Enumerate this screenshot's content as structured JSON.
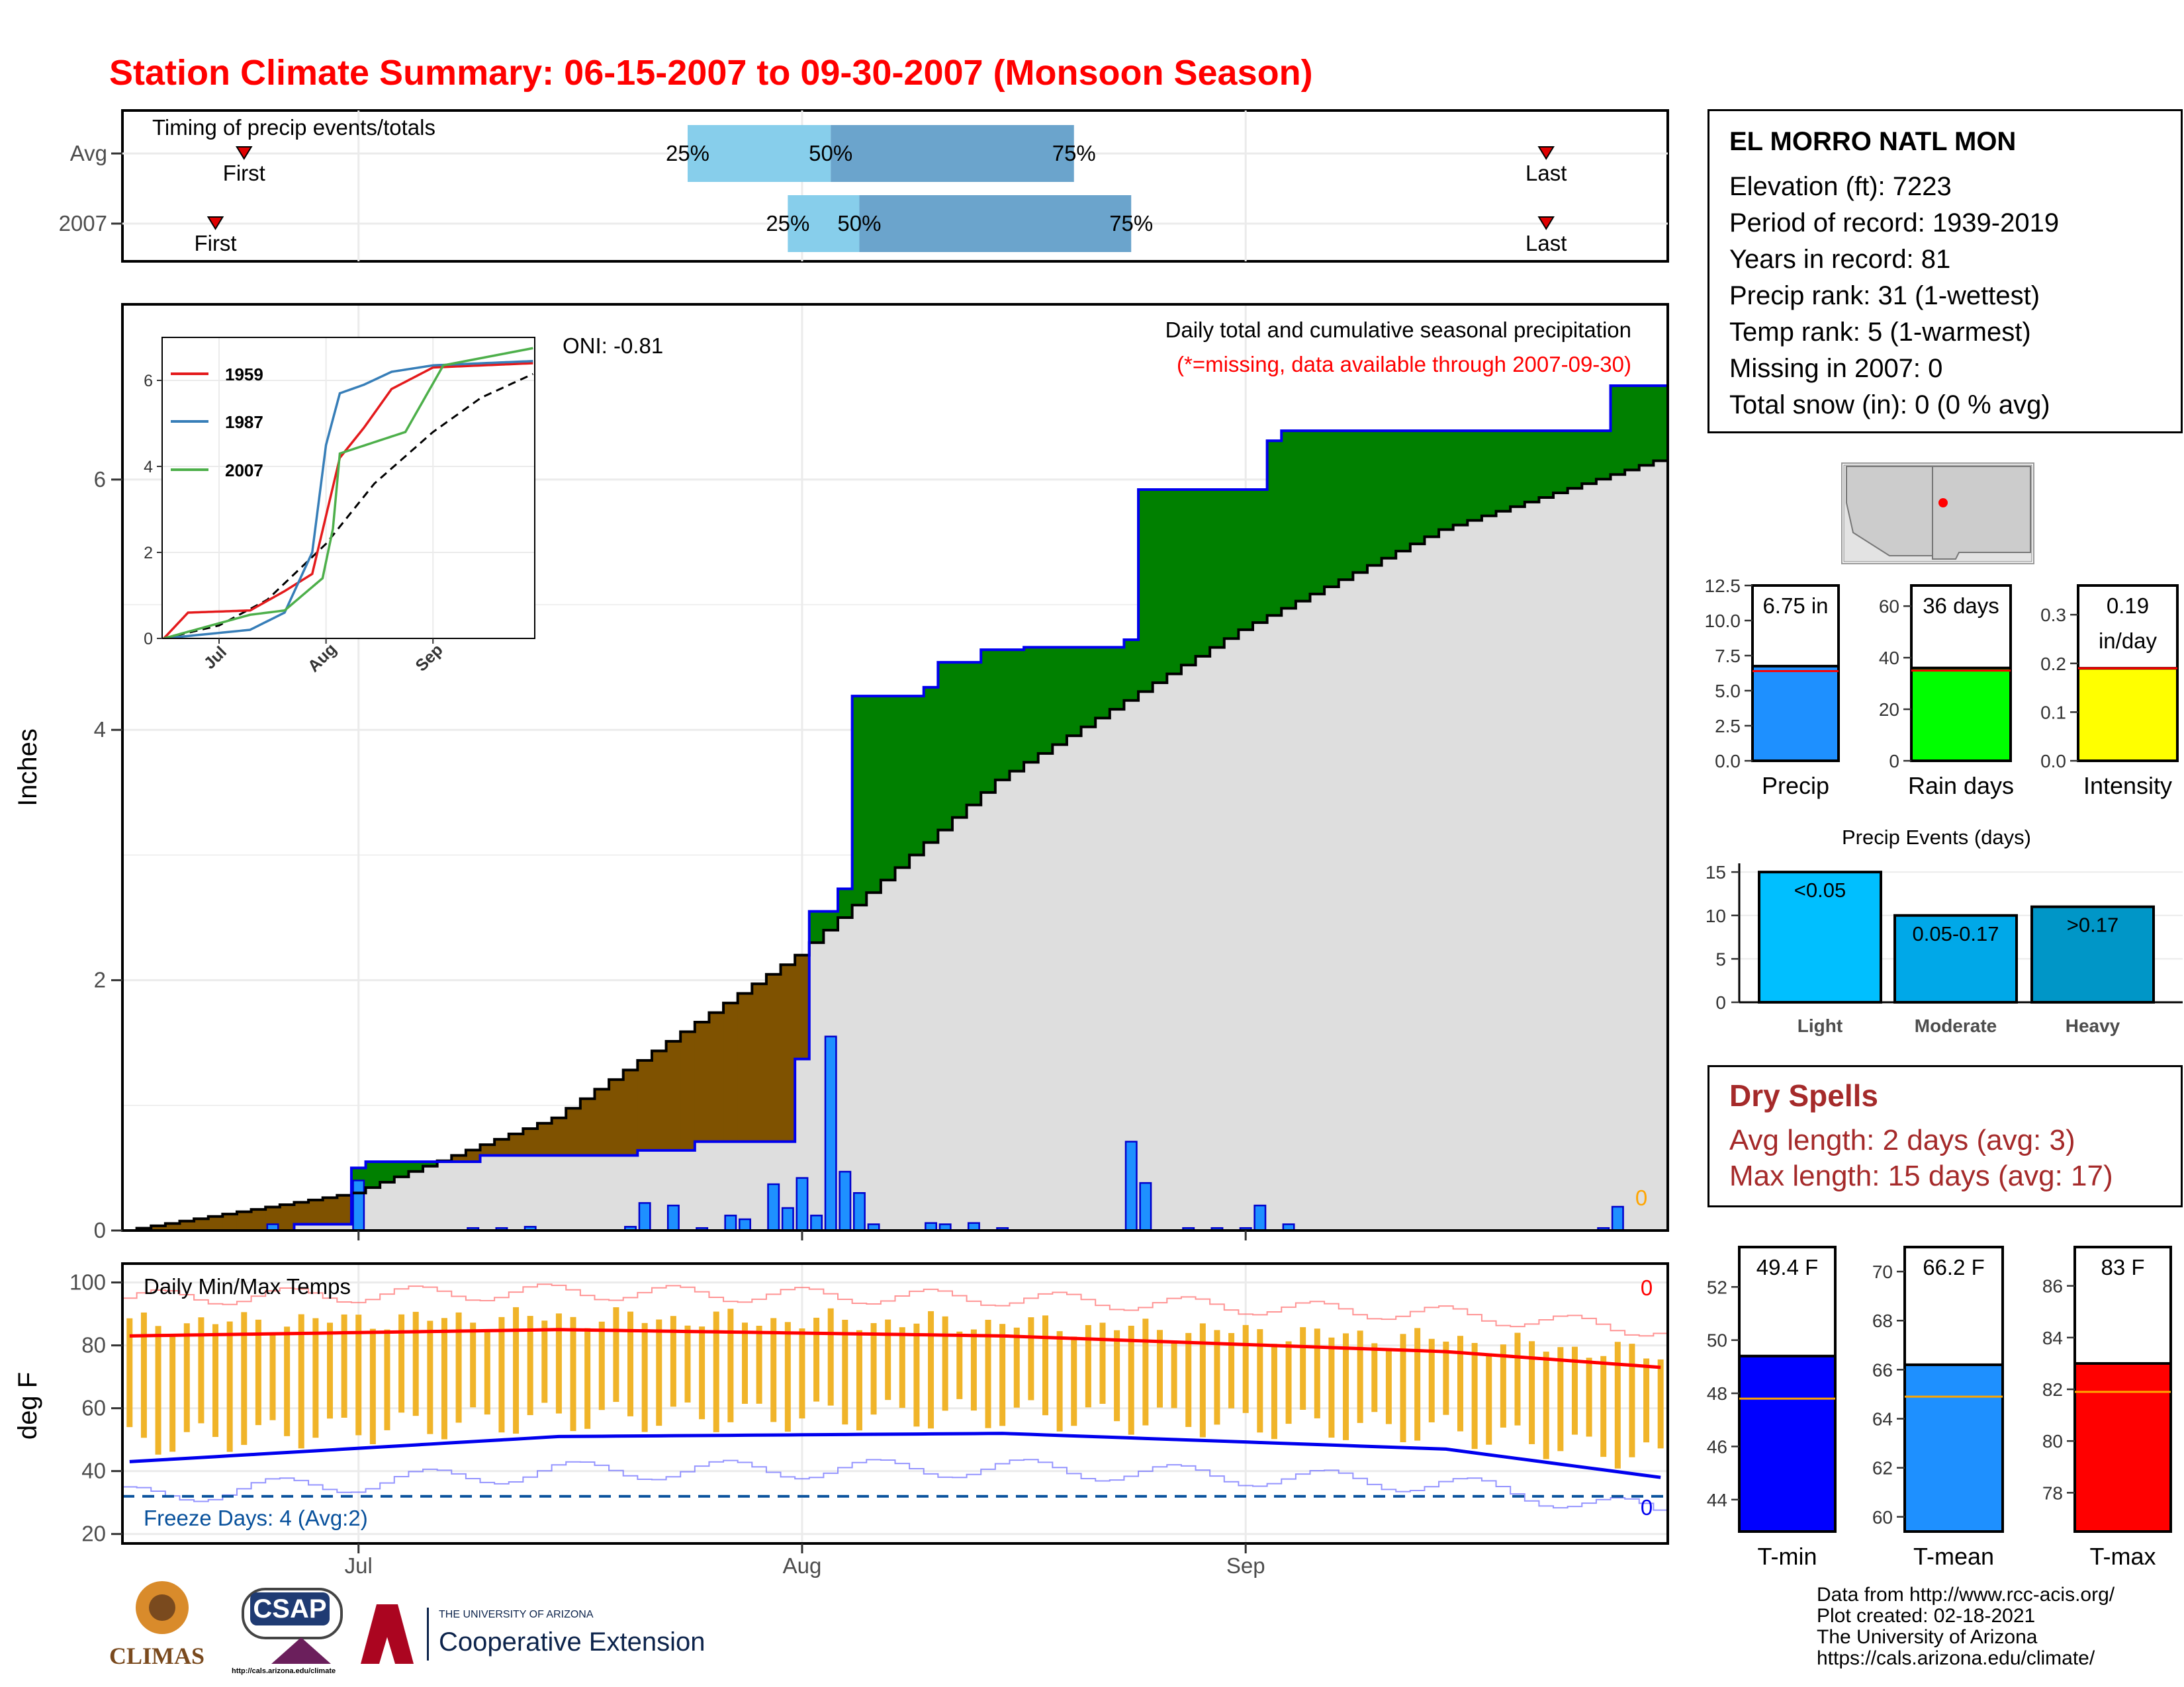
{
  "title": "Station Climate Summary: 06-15-2007 to 09-30-2007 (Monsoon Season)",
  "colors": {
    "title": "#FF0000",
    "deficit": "#7F5200",
    "surplus": "#008000",
    "climo_fill": "#DEDEDE",
    "daily_bar": "#1E90FF",
    "tmin": "#0000FF",
    "tmax": "#FF0000",
    "range_bar": "#F0B429",
    "light": "#00BFFF",
    "moderate": "#00A8E8",
    "heavy": "#0096C7"
  },
  "station": {
    "name": "EL MORRO NATL MON",
    "lines": [
      "Elevation (ft): 7223",
      "Period of record: 1939-2019",
      "Years in record: 81",
      "Precip rank: 31 (1-wettest)",
      "Temp rank: 5 (1-warmest)",
      "Missing in 2007: 0",
      "Total snow (in): 0 (0 % avg)"
    ]
  },
  "timing": {
    "title": "Timing of precip events/totals",
    "row_labels": [
      "Avg",
      "2007"
    ],
    "first_label": "First",
    "last_label": "Last",
    "p25": "25%",
    "p50": "50%",
    "p75": "75%"
  },
  "main": {
    "ylabel": "Inches",
    "yticks": [
      "0",
      "2",
      "4",
      "6"
    ],
    "oni": "ONI: -0.81",
    "desc": "Daily total and cumulative seasonal precipitation",
    "note": "(*=missing, data available through 2007-09-30)",
    "zero": "0",
    "xticks": [
      "Jul",
      "Aug",
      "Sep"
    ]
  },
  "inset": {
    "yticks": [
      "0",
      "2",
      "4",
      "6"
    ],
    "xticks": [
      "Jul",
      "Aug",
      "Sep"
    ],
    "legend": [
      "1959",
      "1987",
      "2007"
    ]
  },
  "temps": {
    "title": "Daily Min/Max Temps",
    "ylabel": "deg F",
    "yticks": [
      "20",
      "40",
      "60",
      "80",
      "100"
    ],
    "freeze": "Freeze Days: 4 (Avg:2)",
    "zero_top": "0",
    "zero_bottom": "0"
  },
  "bars": {
    "precip": {
      "label": "Precip",
      "value_text": "6.75 in",
      "yticks": [
        "0.0",
        "2.5",
        "5.0",
        "7.5",
        "10.0",
        "12.5"
      ]
    },
    "raindays": {
      "label": "Rain days",
      "value_text": "36 days",
      "yticks": [
        "0",
        "20",
        "40",
        "60"
      ]
    },
    "intensity": {
      "label": "Intensity",
      "value_text": "0.19",
      "value_unit": "in/day",
      "yticks": [
        "0.0",
        "0.1",
        "0.2",
        "0.3"
      ]
    }
  },
  "events": {
    "title": "Precip Events (days)",
    "yticks": [
      "0",
      "5",
      "10",
      "15"
    ],
    "labels": [
      "Light",
      "Moderate",
      "Heavy"
    ],
    "bar_text": [
      "<0.05",
      "0.05-0.17",
      ">0.17"
    ]
  },
  "dry": {
    "title": "Dry Spells",
    "lines": [
      "Avg length: 2 days (avg: 3)",
      "Max length: 15 days (avg: 17)"
    ]
  },
  "tempbars": {
    "tmin": {
      "label": "T-min",
      "value_text": "49.4 F",
      "yticks": [
        "44",
        "46",
        "48",
        "50",
        "52"
      ]
    },
    "tmean": {
      "label": "T-mean",
      "value_text": "66.2 F",
      "yticks": [
        "60",
        "62",
        "64",
        "66",
        "68",
        "70"
      ]
    },
    "tmax": {
      "label": "T-max",
      "value_text": "83 F",
      "yticks": [
        "78",
        "80",
        "82",
        "84",
        "86"
      ]
    }
  },
  "credits": [
    "Data from http://www.rcc-acis.org/",
    "Plot created: 02-18-2021",
    "The University of Arizona",
    "https://cals.arizona.edu/climate/"
  ],
  "logos": {
    "climas": "CLIMAS",
    "csap": "CSAP",
    "csap_url": "http://cals.arizona.edu/climate",
    "ua_small": "THE UNIVERSITY OF ARIZONA",
    "ua_big": "Cooperative Extension"
  },
  "chart_data": [
    {
      "type": "bar",
      "title": "Timing of precip events/totals",
      "categories": [
        "Avg",
        "2007"
      ],
      "series": [
        {
          "name": "First",
          "values": [
            "2007-06-23",
            "2007-06-21"
          ]
        },
        {
          "name": "25%",
          "values": [
            "2007-07-24",
            "2007-07-31"
          ]
        },
        {
          "name": "50%",
          "values": [
            "2007-08-03",
            "2007-08-05"
          ]
        },
        {
          "name": "75%",
          "values": [
            "2007-08-20",
            "2007-08-24"
          ]
        },
        {
          "name": "Last",
          "values": [
            "2007-09-22",
            "2007-09-22"
          ]
        }
      ]
    },
    {
      "type": "area",
      "title": "Daily total and cumulative seasonal precipitation",
      "ylabel": "Inches",
      "ylim": [
        0,
        7.4
      ],
      "cumulative_2007": {
        "x": [
          "2007-06-15",
          "2007-06-27",
          "2007-07-01",
          "2007-07-02",
          "2007-07-10",
          "2007-07-21",
          "2007-07-25",
          "2007-08-01",
          "2007-08-02",
          "2007-08-03",
          "2007-08-04",
          "2007-08-05",
          "2007-08-10",
          "2007-08-11",
          "2007-08-14",
          "2007-08-17",
          "2007-08-24",
          "2007-08-25",
          "2007-09-03",
          "2007-09-04",
          "2007-09-27",
          "2007-09-30"
        ],
        "values": [
          0.0,
          0.05,
          0.5,
          0.55,
          0.6,
          0.64,
          0.71,
          1.37,
          2.55,
          2.55,
          2.73,
          4.27,
          4.34,
          4.54,
          4.64,
          4.66,
          4.72,
          5.92,
          6.31,
          6.39,
          6.75,
          6.75
        ]
      },
      "average_cumulative": {
        "x": [
          "2007-06-15",
          "2007-07-01",
          "2007-07-15",
          "2007-08-01",
          "2007-08-15",
          "2007-09-01",
          "2007-09-15",
          "2007-09-30"
        ],
        "values": [
          0.0,
          0.3,
          0.9,
          2.2,
          3.6,
          4.8,
          5.6,
          6.15
        ]
      },
      "daily": {
        "x": [
          "2007-06-25",
          "2007-07-01",
          "2007-07-09",
          "2007-07-11",
          "2007-07-13",
          "2007-07-20",
          "2007-07-21",
          "2007-07-23",
          "2007-07-25",
          "2007-07-27",
          "2007-07-28",
          "2007-07-30",
          "2007-07-31",
          "2007-08-01",
          "2007-08-02",
          "2007-08-03",
          "2007-08-04",
          "2007-08-05",
          "2007-08-06",
          "2007-08-10",
          "2007-08-11",
          "2007-08-13",
          "2007-08-15",
          "2007-08-24",
          "2007-08-25",
          "2007-08-28",
          "2007-08-30",
          "2007-09-01",
          "2007-09-02",
          "2007-09-04",
          "2007-09-26",
          "2007-09-27"
        ],
        "values": [
          0.05,
          0.4,
          0.02,
          0.02,
          0.03,
          0.03,
          0.22,
          0.2,
          0.02,
          0.12,
          0.09,
          0.37,
          0.18,
          0.42,
          0.12,
          1.55,
          0.47,
          0.3,
          0.05,
          0.06,
          0.05,
          0.06,
          0.02,
          0.71,
          0.38,
          0.02,
          0.02,
          0.02,
          0.2,
          0.05,
          0.02,
          0.19
        ]
      }
    },
    {
      "type": "line",
      "title": "",
      "legend": [
        "1959",
        "1987",
        "2007"
      ],
      "series": [
        {
          "name": "1959",
          "x": [
            "2007-06-15",
            "2007-06-22",
            "2007-07-10",
            "2007-07-20",
            "2007-07-28",
            "2007-08-05",
            "2007-08-12",
            "2007-08-20",
            "2007-09-01",
            "2007-09-30"
          ],
          "values": [
            0,
            0.6,
            0.65,
            1.1,
            1.5,
            4.2,
            4.9,
            5.8,
            6.3,
            6.4
          ]
        },
        {
          "name": "1987",
          "x": [
            "2007-06-15",
            "2007-07-10",
            "2007-07-20",
            "2007-07-28",
            "2007-08-01",
            "2007-08-05",
            "2007-08-12",
            "2007-08-20",
            "2007-09-01",
            "2007-09-30"
          ],
          "values": [
            0,
            0.2,
            0.6,
            2.0,
            4.5,
            5.7,
            5.9,
            6.2,
            6.35,
            6.45
          ]
        },
        {
          "name": "2007",
          "x": [
            "2007-06-15",
            "2007-07-10",
            "2007-07-20",
            "2007-07-31",
            "2007-08-03",
            "2007-08-05",
            "2007-08-24",
            "2007-09-04",
            "2007-09-30"
          ],
          "values": [
            0,
            0.55,
            0.65,
            1.4,
            2.55,
            4.3,
            4.8,
            6.35,
            6.75
          ]
        }
      ]
    },
    {
      "type": "line",
      "title": "Daily Min/Max Temps",
      "ylabel": "deg F",
      "ylim": [
        20,
        100
      ],
      "series": [
        {
          "name": "avg max",
          "x": [
            "2007-06-15",
            "2007-07-15",
            "2007-08-15",
            "2007-09-15",
            "2007-09-30"
          ],
          "values": [
            83,
            85,
            83,
            78,
            73
          ]
        },
        {
          "name": "avg min",
          "x": [
            "2007-06-15",
            "2007-07-15",
            "2007-08-15",
            "2007-09-15",
            "2007-09-30"
          ],
          "values": [
            43,
            51,
            52,
            47,
            38
          ]
        }
      ],
      "freeze_line": 32
    },
    {
      "type": "bar",
      "categories": [
        "Precip",
        "Rain days",
        "Intensity"
      ],
      "values": [
        6.75,
        36,
        0.19
      ],
      "averages": [
        6.4,
        35,
        0.19
      ]
    },
    {
      "type": "bar",
      "title": "Precip Events (days)",
      "categories": [
        "Light",
        "Moderate",
        "Heavy"
      ],
      "values": [
        15,
        10,
        11
      ],
      "ylim": [
        0,
        16
      ]
    },
    {
      "type": "bar",
      "categories": [
        "T-min",
        "T-mean",
        "T-max"
      ],
      "values": [
        49.4,
        66.2,
        83
      ],
      "averages": [
        47.8,
        64.9,
        81.9
      ]
    }
  ]
}
